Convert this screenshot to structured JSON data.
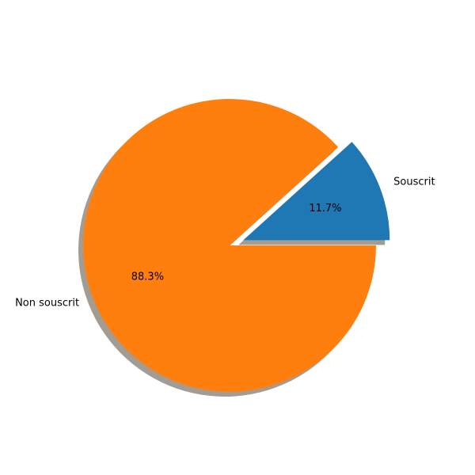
{
  "chart_data": {
    "type": "pie",
    "labels": [
      "Souscrit",
      "Non souscrit"
    ],
    "values": [
      11.7,
      88.3
    ],
    "percent_labels": [
      "11.7%",
      "88.3%"
    ],
    "colors": [
      "#1f77b4",
      "#ff7f0e"
    ],
    "explode": [
      0.1,
      0
    ],
    "start_angle_deg": 0,
    "shadow": true,
    "shadow_color": "#a39c93",
    "title": ""
  }
}
